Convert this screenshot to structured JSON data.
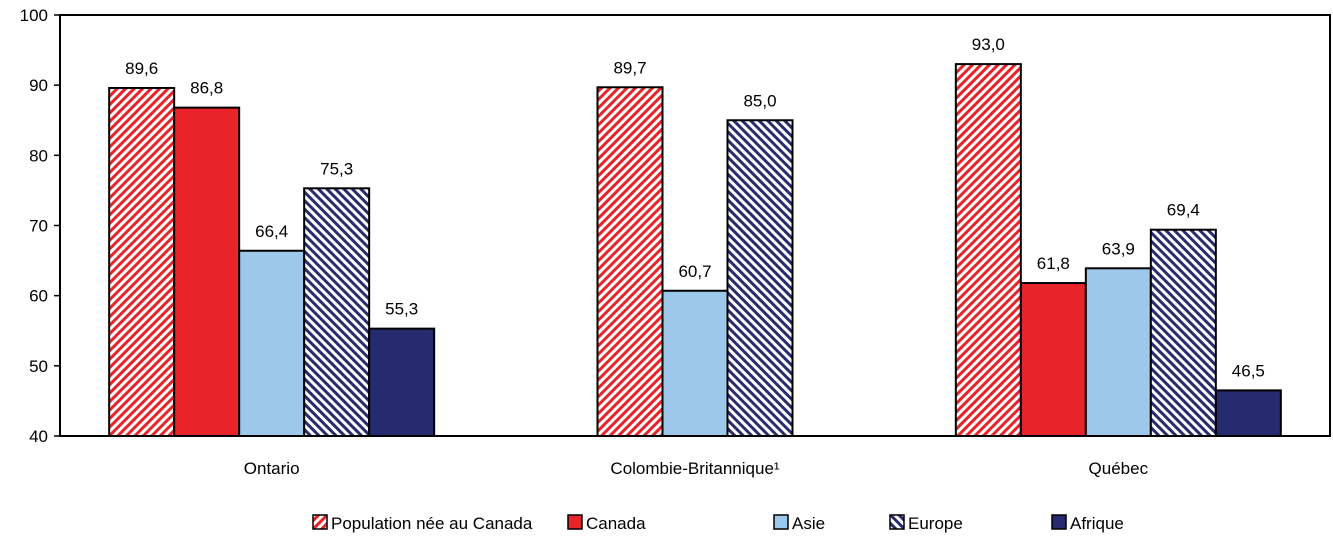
{
  "chart_data": {
    "type": "bar",
    "title": "",
    "xlabel": "",
    "ylabel": "",
    "ylim": [
      40,
      100
    ],
    "yticks": [
      40,
      50,
      60,
      70,
      80,
      90,
      100
    ],
    "grid": false,
    "legend_position": "bottom",
    "categories": [
      "Ontario",
      "Colombie-Britannique¹",
      "Québec"
    ],
    "series": [
      {
        "name": "Population née au Canada",
        "color": "#e8242a",
        "pattern": "hatch-diagonal",
        "values": [
          89.6,
          89.7,
          93.0
        ],
        "labels": [
          "89,6",
          "89,7",
          "93,0"
        ]
      },
      {
        "name": "Canada",
        "color": "#e8242a",
        "pattern": "solid",
        "values": [
          86.8,
          null,
          61.8
        ],
        "labels": [
          "86,8",
          "",
          "61,8"
        ]
      },
      {
        "name": "Asie",
        "color": "#9ec8ea",
        "pattern": "solid",
        "values": [
          66.4,
          60.7,
          63.9
        ],
        "labels": [
          "66,4",
          "60,7",
          "63,9"
        ]
      },
      {
        "name": "Europe",
        "color": "#2a2a6e",
        "pattern": "hatch-diagonal",
        "values": [
          75.3,
          85.0,
          69.4
        ],
        "labels": [
          "75,3",
          "85,0",
          "69,4"
        ]
      },
      {
        "name": "Afrique",
        "color": "#262a6e",
        "pattern": "solid",
        "values": [
          55.3,
          null,
          46.5
        ],
        "labels": [
          "55,3",
          "",
          "46,5"
        ]
      }
    ]
  }
}
